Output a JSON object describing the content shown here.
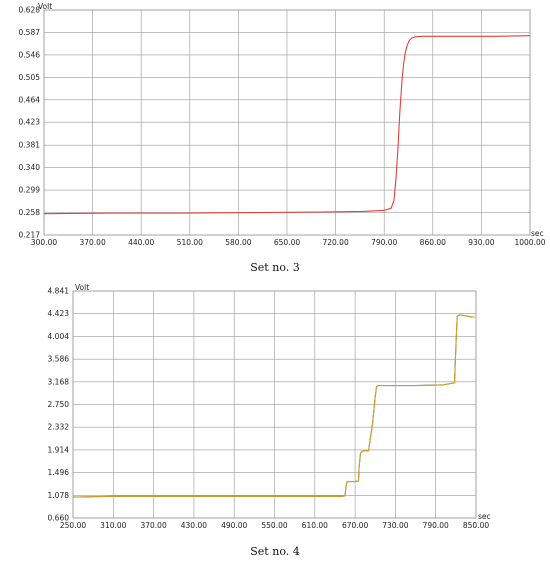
{
  "chart_data": [
    {
      "type": "line",
      "caption": "Set no. 3",
      "y_unit": "Volt",
      "x_unit": "sec",
      "xlim": [
        300,
        1000
      ],
      "ylim": [
        0.217,
        0.628
      ],
      "x_ticks": [
        "300.00",
        "370.00",
        "440.00",
        "510.00",
        "580.00",
        "650.00",
        "720.00",
        "790.00",
        "860.00",
        "930.00",
        "1000.00"
      ],
      "y_ticks": [
        "0.628",
        "0.587",
        "0.546",
        "0.505",
        "0.464",
        "0.423",
        "0.381",
        "0.340",
        "0.299",
        "0.258",
        "0.217"
      ],
      "grid": true,
      "series": [
        {
          "color": "#e0403c",
          "x": [
            300,
            400,
            500,
            600,
            700,
            760,
            790,
            800,
            804,
            807,
            810,
            812,
            814,
            816,
            818,
            820,
            823,
            826,
            830,
            835,
            845,
            860,
            900,
            950,
            1000
          ],
          "y": [
            0.256,
            0.257,
            0.257,
            0.258,
            0.259,
            0.26,
            0.262,
            0.266,
            0.28,
            0.32,
            0.38,
            0.43,
            0.47,
            0.505,
            0.53,
            0.548,
            0.563,
            0.572,
            0.577,
            0.579,
            0.58,
            0.58,
            0.58,
            0.58,
            0.581
          ]
        }
      ]
    },
    {
      "type": "line",
      "caption": "Set no. 4",
      "y_unit": "Volt",
      "x_unit": "sec",
      "xlim": [
        250,
        850
      ],
      "ylim": [
        0.66,
        4.841
      ],
      "x_ticks": [
        "250.00",
        "310.00",
        "370.00",
        "430.00",
        "490.00",
        "550.00",
        "610.00",
        "670.00",
        "730.00",
        "790.00",
        "850.00"
      ],
      "y_ticks": [
        "4.841",
        "4.423",
        "4.004",
        "3.586",
        "3.168",
        "2.750",
        "2.332",
        "1.914",
        "1.496",
        "1.078",
        "0.660"
      ],
      "grid": true,
      "series": [
        {
          "color": "#3a5f2a",
          "x": [
            250,
            310,
            400,
            500,
            600,
            650,
            655,
            656,
            658,
            668,
            675,
            676,
            678,
            682,
            690,
            696,
            700,
            702,
            704,
            708,
            720,
            760,
            800,
            818,
            820,
            822,
            826,
            832,
            840,
            848
          ],
          "y": [
            1.045,
            1.06,
            1.06,
            1.06,
            1.06,
            1.06,
            1.065,
            1.2,
            1.33,
            1.33,
            1.34,
            1.6,
            1.85,
            1.9,
            1.9,
            2.4,
            2.9,
            3.08,
            3.1,
            3.1,
            3.1,
            3.1,
            3.11,
            3.15,
            3.8,
            4.38,
            4.4,
            4.39,
            4.37,
            4.36
          ]
        },
        {
          "color": "#e8a52a",
          "x": [
            250,
            310,
            400,
            500,
            600,
            650,
            655,
            656,
            658,
            668,
            675,
            676,
            678,
            682,
            690,
            696,
            700,
            702,
            704,
            708,
            720,
            760,
            800,
            818,
            820,
            822,
            826,
            832,
            840,
            848
          ],
          "y": [
            1.045,
            1.06,
            1.06,
            1.06,
            1.06,
            1.06,
            1.065,
            1.2,
            1.33,
            1.33,
            1.34,
            1.6,
            1.85,
            1.9,
            1.9,
            2.4,
            2.9,
            3.08,
            3.1,
            3.1,
            3.1,
            3.1,
            3.11,
            3.15,
            3.8,
            4.38,
            4.4,
            4.39,
            4.37,
            4.36
          ]
        }
      ]
    }
  ]
}
